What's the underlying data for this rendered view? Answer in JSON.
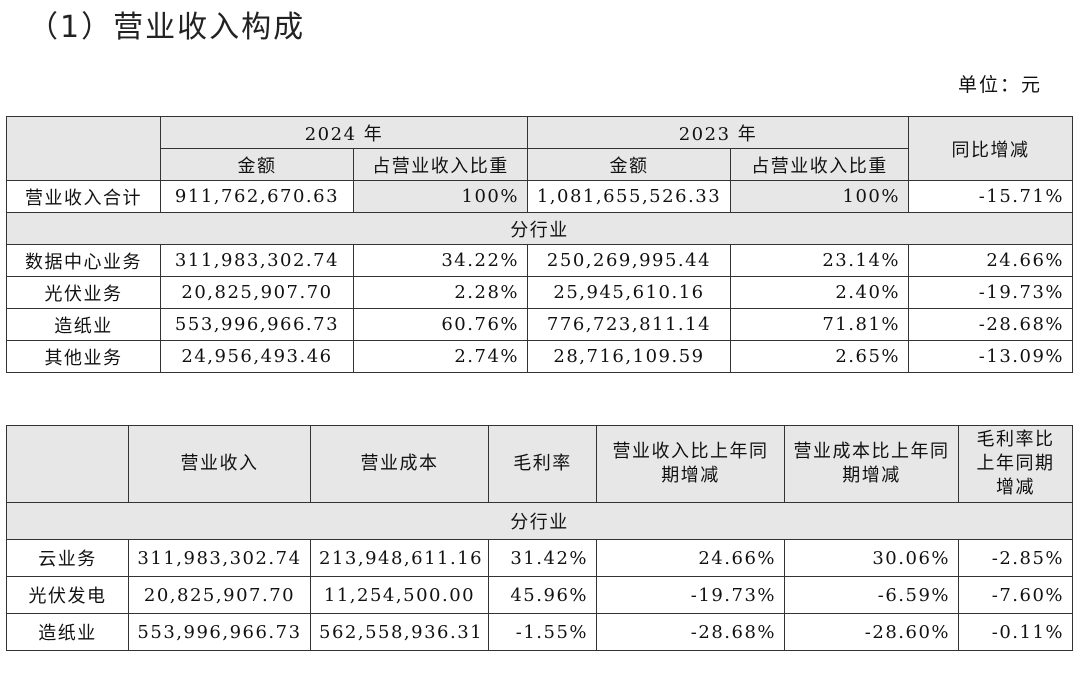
{
  "heading": "（1）营业收入构成",
  "unit": "单位：元",
  "table1": {
    "year_2024": "2024 年",
    "year_2023": "2023 年",
    "col_amount": "金额",
    "col_share": "占营业收入比重",
    "col_yoy": "同比增减",
    "total": {
      "label": "营业收入合计",
      "amount_2024": "911,762,670.63",
      "share_2024": "100%",
      "amount_2023": "1,081,655,526.33",
      "share_2023": "100%",
      "yoy": "-15.71%"
    },
    "section": "分行业",
    "rows": [
      {
        "label": "数据中心业务",
        "amount_2024": "311,983,302.74",
        "share_2024": "34.22%",
        "amount_2023": "250,269,995.44",
        "share_2023": "23.14%",
        "yoy": "24.66%"
      },
      {
        "label": "光伏业务",
        "amount_2024": "20,825,907.70",
        "share_2024": "2.28%",
        "amount_2023": "25,945,610.16",
        "share_2023": "2.40%",
        "yoy": "-19.73%"
      },
      {
        "label": "造纸业",
        "amount_2024": "553,996,966.73",
        "share_2024": "60.76%",
        "amount_2023": "776,723,811.14",
        "share_2023": "71.81%",
        "yoy": "-28.68%"
      },
      {
        "label": "其他业务",
        "amount_2024": "24,956,493.46",
        "share_2024": "2.74%",
        "amount_2023": "28,716,109.59",
        "share_2023": "2.65%",
        "yoy": "-13.09%"
      }
    ]
  },
  "table2": {
    "headers": [
      "营业收入",
      "营业成本",
      "毛利率",
      "营业收入比上年同期增减",
      "营业成本比上年同期增减",
      "毛利率比上年同期增减"
    ],
    "section": "分行业",
    "rows": [
      {
        "label": "云业务",
        "revenue": "311,983,302.74",
        "cost": "213,948,611.16",
        "margin": "31.42%",
        "rev_yoy": "24.66%",
        "cost_yoy": "30.06%",
        "margin_yoy": "-2.85%"
      },
      {
        "label": "光伏发电",
        "revenue": "20,825,907.70",
        "cost": "11,254,500.00",
        "margin": "45.96%",
        "rev_yoy": "-19.73%",
        "cost_yoy": "-6.59%",
        "margin_yoy": "-7.60%"
      },
      {
        "label": "造纸业",
        "revenue": "553,996,966.73",
        "cost": "562,558,936.31",
        "margin": "-1.55%",
        "rev_yoy": "-28.68%",
        "cost_yoy": "-28.60%",
        "margin_yoy": "-0.11%"
      }
    ]
  }
}
